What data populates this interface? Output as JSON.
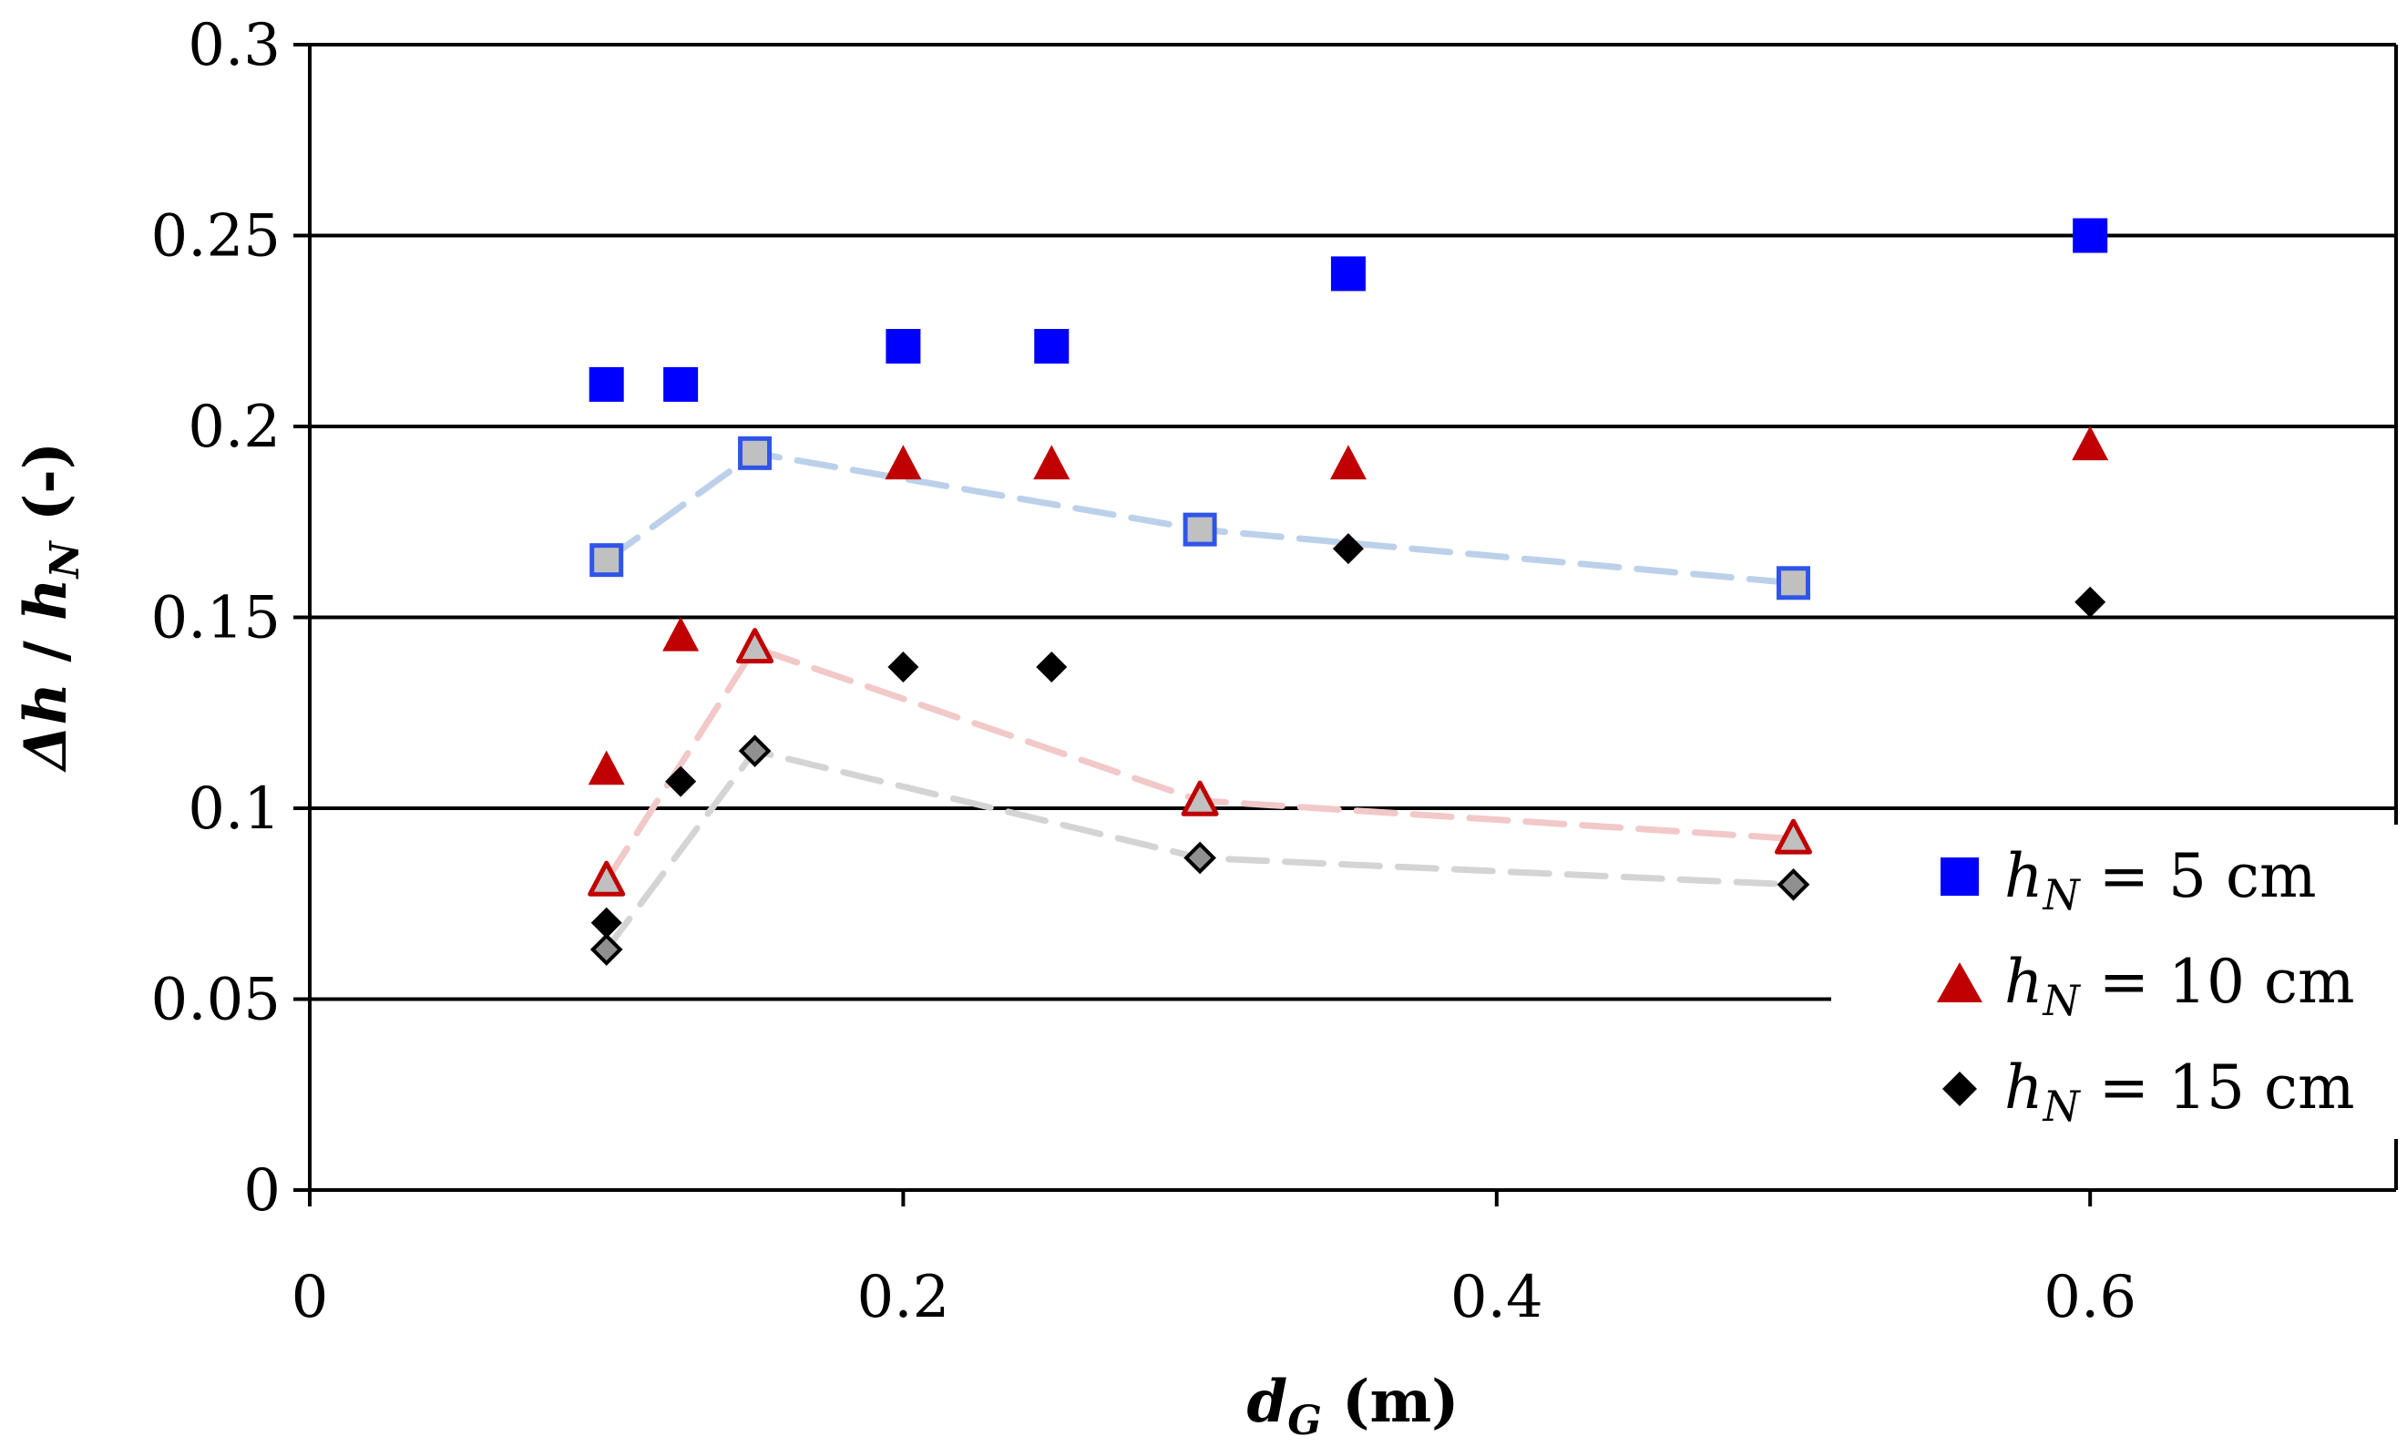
{
  "chart_data": {
    "type": "scatter",
    "title": "",
    "xlabel": {
      "main": "d",
      "sub": "G",
      "unit": " (m)"
    },
    "ylabel": {
      "delta_symbol": "Δ",
      "h1": "h",
      "slash": " / ",
      "h2": "h",
      "sub": "N",
      "unit": " (-)"
    },
    "xlim": [
      0,
      0.7
    ],
    "ylim": [
      0,
      0.3
    ],
    "x_ticks": [
      0,
      0.2,
      0.4,
      0.6
    ],
    "y_ticks": [
      0,
      0.05,
      0.1,
      0.15,
      0.2,
      0.25,
      0.3
    ],
    "x_tick_labels": [
      "0",
      "0.2",
      "0.4",
      "0.6"
    ],
    "y_tick_labels": [
      "0",
      "0.05",
      "0.1",
      "0.15",
      "0.2",
      "0.25",
      "0.3"
    ],
    "grid": "horizontal",
    "legend_position": "bottom-right",
    "series": [
      {
        "name": "hN = 5 cm",
        "legend_h": "h",
        "legend_sub": "N",
        "legend_rest": " = 5 cm",
        "marker": "square",
        "color": "#0000ff",
        "x": [
          0.1,
          0.125,
          0.2,
          0.25,
          0.35,
          0.6
        ],
        "y": [
          0.211,
          0.211,
          0.221,
          0.221,
          0.24,
          0.25
        ]
      },
      {
        "name": "hN = 10 cm",
        "legend_h": "h",
        "legend_sub": "N",
        "legend_rest": " = 10 cm",
        "marker": "triangle",
        "color": "#c00000",
        "x": [
          0.1,
          0.125,
          0.2,
          0.25,
          0.35,
          0.6
        ],
        "y": [
          0.11,
          0.145,
          0.19,
          0.19,
          0.19,
          0.195
        ]
      },
      {
        "name": "hN = 15 cm",
        "legend_h": "h",
        "legend_sub": "N",
        "legend_rest": " = 15 cm",
        "marker": "diamond",
        "color": "#000000",
        "x": [
          0.1,
          0.125,
          0.2,
          0.25,
          0.35,
          0.6
        ],
        "y": [
          0.07,
          0.107,
          0.137,
          0.137,
          0.168,
          0.154
        ]
      }
    ],
    "comparison_series": [
      {
        "name": "hN = 5 cm (dashed)",
        "marker": "square",
        "edge_color": "#2f55e8",
        "fill_color": "#c0c0c0",
        "line_color": "#bcd0ea",
        "x": [
          0.1,
          0.15,
          0.3,
          0.5
        ],
        "y": [
          0.165,
          0.193,
          0.173,
          0.159
        ]
      },
      {
        "name": "hN = 10 cm (dashed)",
        "marker": "triangle",
        "edge_color": "#c00000",
        "fill_color": "#c0c0c0",
        "line_color": "#f2c8c8",
        "x": [
          0.1,
          0.15,
          0.3,
          0.5
        ],
        "y": [
          0.081,
          0.142,
          0.102,
          0.092
        ]
      },
      {
        "name": "hN = 15 cm (dashed)",
        "marker": "diamond",
        "edge_color": "#000000",
        "fill_color": "#909090",
        "line_color": "#d4d4d4",
        "x": [
          0.1,
          0.15,
          0.3,
          0.5
        ],
        "y": [
          0.063,
          0.115,
          0.087,
          0.08
        ]
      }
    ]
  }
}
